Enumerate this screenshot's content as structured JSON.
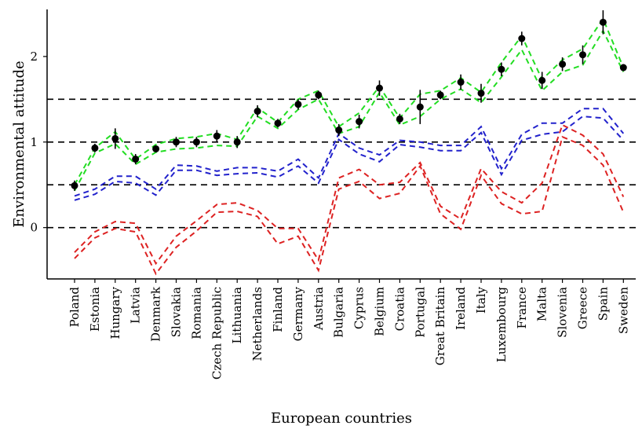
{
  "chart_data": {
    "type": "line",
    "xlabel": "European countries",
    "ylabel": "Environmental attitude",
    "ylim": [
      -0.6,
      2.55
    ],
    "yticks": [
      0,
      1,
      2
    ],
    "reference_lines": [
      0,
      0.5,
      1,
      1.5
    ],
    "categories": [
      "Poland",
      "Estonia",
      "Hungary",
      "Latvia",
      "Denmark",
      "Slovakia",
      "Romania",
      "Czech Republic",
      "Lithuania",
      "Netherlands",
      "Finland",
      "Germany",
      "Austria",
      "Bulgaria",
      "Cyprus",
      "Belgium",
      "Croatia",
      "Portugal",
      "Great Britain",
      "Ireland",
      "Italy",
      "Luxembourg",
      "France",
      "Malta",
      "Slovenia",
      "Greece",
      "Spain",
      "Sweden"
    ],
    "points": {
      "values": [
        0.49,
        0.93,
        1.04,
        0.8,
        0.92,
        1.0,
        1.0,
        1.07,
        1.0,
        1.36,
        1.22,
        1.44,
        1.55,
        1.14,
        1.24,
        1.63,
        1.27,
        1.41,
        1.55,
        1.7,
        1.57,
        1.85,
        2.21,
        1.72,
        1.91,
        2.02,
        2.4,
        1.87
      ],
      "err": [
        0.06,
        0.05,
        0.12,
        0.06,
        0.04,
        0.06,
        0.06,
        0.07,
        0.07,
        0.07,
        0.05,
        0.06,
        0.05,
        0.07,
        0.08,
        0.09,
        0.06,
        0.2,
        0.05,
        0.09,
        0.11,
        0.08,
        0.08,
        0.1,
        0.08,
        0.11,
        0.14,
        0.04
      ]
    },
    "series": [
      {
        "color": "#22dd22",
        "values": [
          0.5,
          0.93,
          1.12,
          0.8,
          0.97,
          1.04,
          1.06,
          1.1,
          1.03,
          1.4,
          1.23,
          1.5,
          1.6,
          1.18,
          1.34,
          1.65,
          1.28,
          1.56,
          1.6,
          1.75,
          1.58,
          1.93,
          2.24,
          1.73,
          1.96,
          2.09,
          2.44,
          1.87
        ]
      },
      {
        "color": "#22dd22",
        "values": [
          0.43,
          0.87,
          0.98,
          0.74,
          0.88,
          0.92,
          0.93,
          0.96,
          0.95,
          1.3,
          1.16,
          1.38,
          1.5,
          1.1,
          1.18,
          1.58,
          1.2,
          1.3,
          1.5,
          1.62,
          1.46,
          1.76,
          2.08,
          1.6,
          1.82,
          1.9,
          2.3,
          1.82
        ]
      },
      {
        "color": "#2222cc",
        "values": [
          0.37,
          0.45,
          0.6,
          0.6,
          0.45,
          0.73,
          0.72,
          0.66,
          0.7,
          0.7,
          0.66,
          0.8,
          0.58,
          1.1,
          0.93,
          0.85,
          1.02,
          1.0,
          0.96,
          0.96,
          1.18,
          0.69,
          1.09,
          1.22,
          1.22,
          1.39,
          1.39,
          1.1
        ]
      },
      {
        "color": "#2222cc",
        "values": [
          0.32,
          0.39,
          0.54,
          0.52,
          0.38,
          0.67,
          0.67,
          0.61,
          0.63,
          0.64,
          0.59,
          0.72,
          0.52,
          1.03,
          0.86,
          0.77,
          0.97,
          0.94,
          0.9,
          0.9,
          1.11,
          0.62,
          1.02,
          1.09,
          1.12,
          1.3,
          1.28,
          1.02
        ]
      },
      {
        "color": "#dd2222",
        "values": [
          -0.29,
          -0.05,
          0.07,
          0.05,
          -0.42,
          -0.1,
          0.08,
          0.27,
          0.29,
          0.2,
          -0.01,
          -0.01,
          -0.38,
          0.58,
          0.68,
          0.5,
          0.53,
          0.76,
          0.25,
          0.1,
          0.69,
          0.42,
          0.29,
          0.52,
          1.2,
          1.08,
          0.86,
          0.36
        ]
      },
      {
        "color": "#dd2222",
        "values": [
          -0.36,
          -0.12,
          -0.01,
          -0.05,
          -0.54,
          -0.23,
          -0.04,
          0.18,
          0.19,
          0.13,
          -0.19,
          -0.1,
          -0.5,
          0.45,
          0.54,
          0.34,
          0.4,
          0.72,
          0.16,
          -0.02,
          0.61,
          0.28,
          0.16,
          0.19,
          1.06,
          0.96,
          0.73,
          0.18
        ]
      }
    ]
  }
}
